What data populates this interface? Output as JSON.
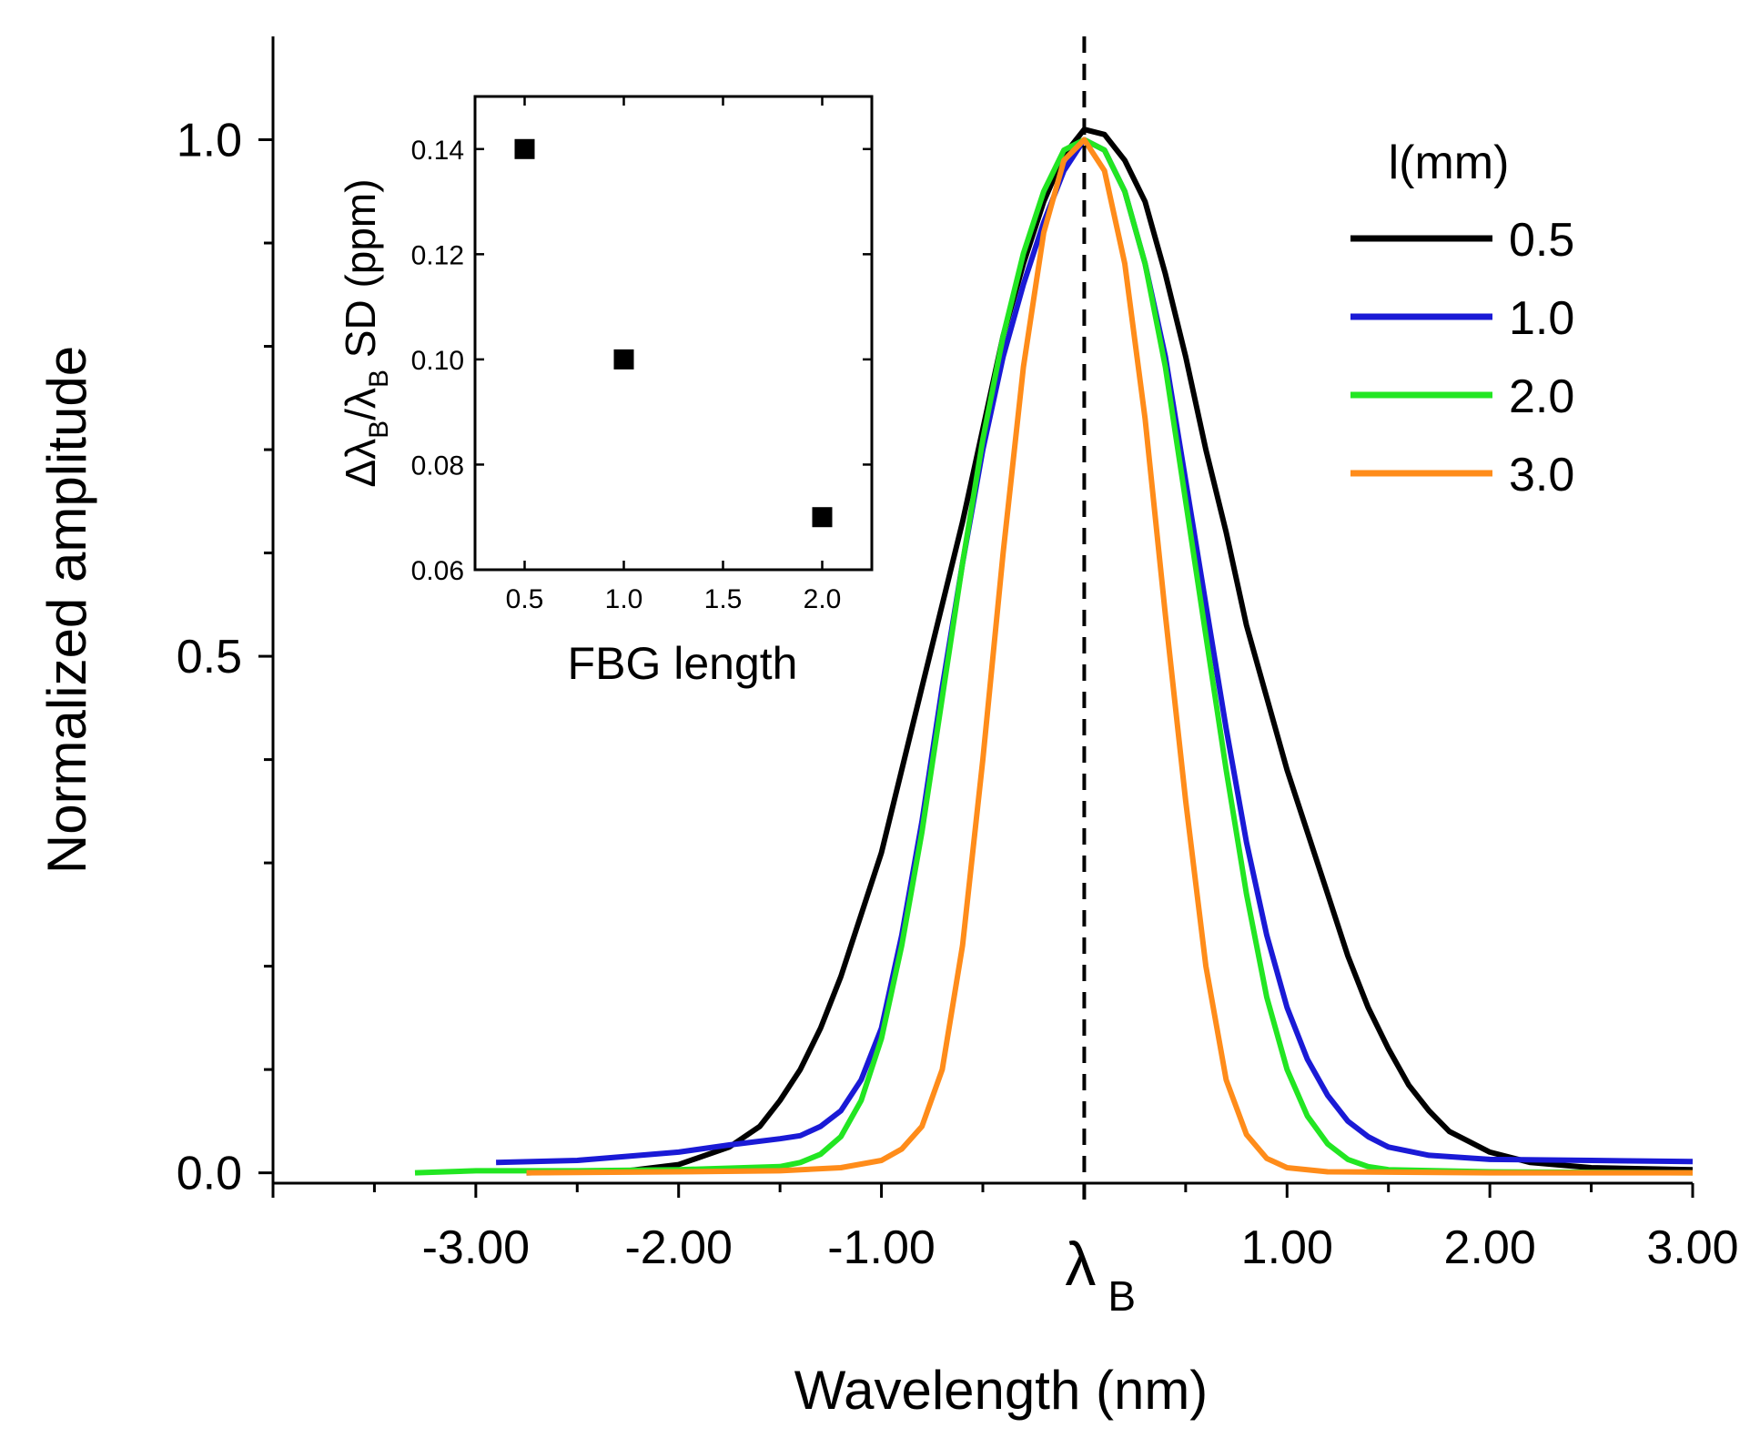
{
  "chart_data": [
    {
      "type": "line",
      "xlabel": "Wavelength (nm)",
      "ylabel": "Normalized amplitude",
      "xlim": [
        -4.0,
        3.0
      ],
      "ylim": [
        -0.01,
        1.1
      ],
      "grid": false,
      "x_ticks": [
        -3.0,
        -2.0,
        -1.0,
        0.0,
        1.0,
        2.0,
        3.0
      ],
      "x_tick_labels": [
        "-3.00",
        "-2.00",
        "-1.00",
        "λ",
        "1.00",
        "2.00",
        "3.00"
      ],
      "x_center_label": {
        "main": "λ",
        "sub": "B"
      },
      "y_ticks": [
        0.0,
        0.5,
        1.0
      ],
      "y_tick_labels": [
        "0.0",
        "0.5",
        "1.0"
      ],
      "reference_line": {
        "x": 0.0,
        "style": "dashed",
        "color": "#000000"
      },
      "legend": {
        "title": "l(mm)",
        "position": "top-right"
      },
      "series": [
        {
          "name": "0.5",
          "color": "#000000",
          "points": [
            [
              -2.75,
              0.0
            ],
            [
              -2.5,
              0.001
            ],
            [
              -2.25,
              0.002
            ],
            [
              -2.0,
              0.008
            ],
            [
              -1.75,
              0.025
            ],
            [
              -1.6,
              0.045
            ],
            [
              -1.5,
              0.07
            ],
            [
              -1.4,
              0.1
            ],
            [
              -1.3,
              0.14
            ],
            [
              -1.2,
              0.19
            ],
            [
              -1.1,
              0.25
            ],
            [
              -1.0,
              0.31
            ],
            [
              -0.9,
              0.39
            ],
            [
              -0.8,
              0.47
            ],
            [
              -0.7,
              0.55
            ],
            [
              -0.6,
              0.63
            ],
            [
              -0.5,
              0.72
            ],
            [
              -0.4,
              0.81
            ],
            [
              -0.3,
              0.88
            ],
            [
              -0.2,
              0.94
            ],
            [
              -0.1,
              0.985
            ],
            [
              0.0,
              1.01
            ],
            [
              0.1,
              1.005
            ],
            [
              0.2,
              0.98
            ],
            [
              0.3,
              0.94
            ],
            [
              0.4,
              0.87
            ],
            [
              0.5,
              0.79
            ],
            [
              0.6,
              0.7
            ],
            [
              0.7,
              0.62
            ],
            [
              0.8,
              0.53
            ],
            [
              0.9,
              0.46
            ],
            [
              1.0,
              0.39
            ],
            [
              1.1,
              0.33
            ],
            [
              1.2,
              0.27
            ],
            [
              1.3,
              0.21
            ],
            [
              1.4,
              0.16
            ],
            [
              1.5,
              0.12
            ],
            [
              1.6,
              0.085
            ],
            [
              1.7,
              0.06
            ],
            [
              1.8,
              0.04
            ],
            [
              1.9,
              0.03
            ],
            [
              2.0,
              0.02
            ],
            [
              2.2,
              0.01
            ],
            [
              2.5,
              0.005
            ],
            [
              3.0,
              0.003
            ]
          ]
        },
        {
          "name": "1.0",
          "color": "#1a1ad6",
          "points": [
            [
              -2.9,
              0.01
            ],
            [
              -2.5,
              0.012
            ],
            [
              -2.0,
              0.02
            ],
            [
              -1.75,
              0.027
            ],
            [
              -1.5,
              0.033
            ],
            [
              -1.4,
              0.036
            ],
            [
              -1.3,
              0.045
            ],
            [
              -1.2,
              0.06
            ],
            [
              -1.1,
              0.09
            ],
            [
              -1.0,
              0.14
            ],
            [
              -0.9,
              0.23
            ],
            [
              -0.8,
              0.34
            ],
            [
              -0.7,
              0.47
            ],
            [
              -0.6,
              0.59
            ],
            [
              -0.5,
              0.7
            ],
            [
              -0.4,
              0.79
            ],
            [
              -0.3,
              0.86
            ],
            [
              -0.2,
              0.92
            ],
            [
              -0.1,
              0.97
            ],
            [
              0.0,
              1.0
            ],
            [
              0.1,
              0.99
            ],
            [
              0.2,
              0.95
            ],
            [
              0.3,
              0.88
            ],
            [
              0.4,
              0.79
            ],
            [
              0.5,
              0.67
            ],
            [
              0.6,
              0.55
            ],
            [
              0.7,
              0.43
            ],
            [
              0.8,
              0.32
            ],
            [
              0.9,
              0.23
            ],
            [
              1.0,
              0.16
            ],
            [
              1.1,
              0.11
            ],
            [
              1.2,
              0.075
            ],
            [
              1.3,
              0.05
            ],
            [
              1.4,
              0.035
            ],
            [
              1.5,
              0.025
            ],
            [
              1.7,
              0.017
            ],
            [
              2.0,
              0.013
            ],
            [
              2.5,
              0.012
            ],
            [
              3.0,
              0.011
            ]
          ]
        },
        {
          "name": "2.0",
          "color": "#22e622",
          "points": [
            [
              -3.3,
              0.0
            ],
            [
              -3.0,
              0.002
            ],
            [
              -2.5,
              0.002
            ],
            [
              -2.0,
              0.003
            ],
            [
              -1.5,
              0.006
            ],
            [
              -1.4,
              0.01
            ],
            [
              -1.3,
              0.018
            ],
            [
              -1.2,
              0.035
            ],
            [
              -1.1,
              0.07
            ],
            [
              -1.0,
              0.13
            ],
            [
              -0.9,
              0.22
            ],
            [
              -0.8,
              0.33
            ],
            [
              -0.7,
              0.46
            ],
            [
              -0.6,
              0.59
            ],
            [
              -0.5,
              0.71
            ],
            [
              -0.4,
              0.81
            ],
            [
              -0.3,
              0.89
            ],
            [
              -0.2,
              0.95
            ],
            [
              -0.1,
              0.99
            ],
            [
              0.0,
              1.0
            ],
            [
              0.1,
              0.99
            ],
            [
              0.2,
              0.95
            ],
            [
              0.3,
              0.88
            ],
            [
              0.4,
              0.78
            ],
            [
              0.5,
              0.65
            ],
            [
              0.6,
              0.52
            ],
            [
              0.7,
              0.39
            ],
            [
              0.8,
              0.27
            ],
            [
              0.9,
              0.17
            ],
            [
              1.0,
              0.1
            ],
            [
              1.1,
              0.055
            ],
            [
              1.2,
              0.028
            ],
            [
              1.3,
              0.013
            ],
            [
              1.4,
              0.006
            ],
            [
              1.5,
              0.003
            ],
            [
              2.0,
              0.001
            ],
            [
              3.0,
              0.0
            ]
          ]
        },
        {
          "name": "3.0",
          "color": "#ff8c1a",
          "points": [
            [
              -2.75,
              0.0
            ],
            [
              -2.0,
              0.001
            ],
            [
              -1.5,
              0.002
            ],
            [
              -1.2,
              0.005
            ],
            [
              -1.0,
              0.012
            ],
            [
              -0.9,
              0.023
            ],
            [
              -0.8,
              0.045
            ],
            [
              -0.7,
              0.1
            ],
            [
              -0.6,
              0.22
            ],
            [
              -0.5,
              0.4
            ],
            [
              -0.4,
              0.6
            ],
            [
              -0.3,
              0.78
            ],
            [
              -0.2,
              0.91
            ],
            [
              -0.1,
              0.98
            ],
            [
              0.0,
              1.0
            ],
            [
              0.1,
              0.97
            ],
            [
              0.2,
              0.88
            ],
            [
              0.3,
              0.73
            ],
            [
              0.4,
              0.54
            ],
            [
              0.5,
              0.36
            ],
            [
              0.6,
              0.2
            ],
            [
              0.7,
              0.09
            ],
            [
              0.8,
              0.037
            ],
            [
              0.9,
              0.014
            ],
            [
              1.0,
              0.005
            ],
            [
              1.2,
              0.001
            ],
            [
              2.0,
              0.0
            ],
            [
              3.0,
              0.0
            ]
          ]
        }
      ]
    },
    {
      "type": "scatter",
      "role": "inset",
      "xlabel": "FBG length",
      "ylabel": {
        "delta": "Δλ",
        "sub1": "B",
        "slash": "/λ",
        "sub2": "B",
        "rest": " SD (ppm)"
      },
      "xlim": [
        0.25,
        2.25
      ],
      "ylim": [
        0.06,
        0.15
      ],
      "x_ticks": [
        0.5,
        1.0,
        1.5,
        2.0
      ],
      "x_tick_labels": [
        "0.5",
        "1.0",
        "1.5",
        "2.0"
      ],
      "y_ticks": [
        0.06,
        0.08,
        0.1,
        0.12,
        0.14
      ],
      "y_tick_labels": [
        "0.06",
        "0.08",
        "0.10",
        "0.12",
        "0.14"
      ],
      "x": [
        0.5,
        1.0,
        2.0
      ],
      "y": [
        0.14,
        0.1,
        0.07
      ],
      "marker": "square",
      "color": "#000000"
    }
  ]
}
